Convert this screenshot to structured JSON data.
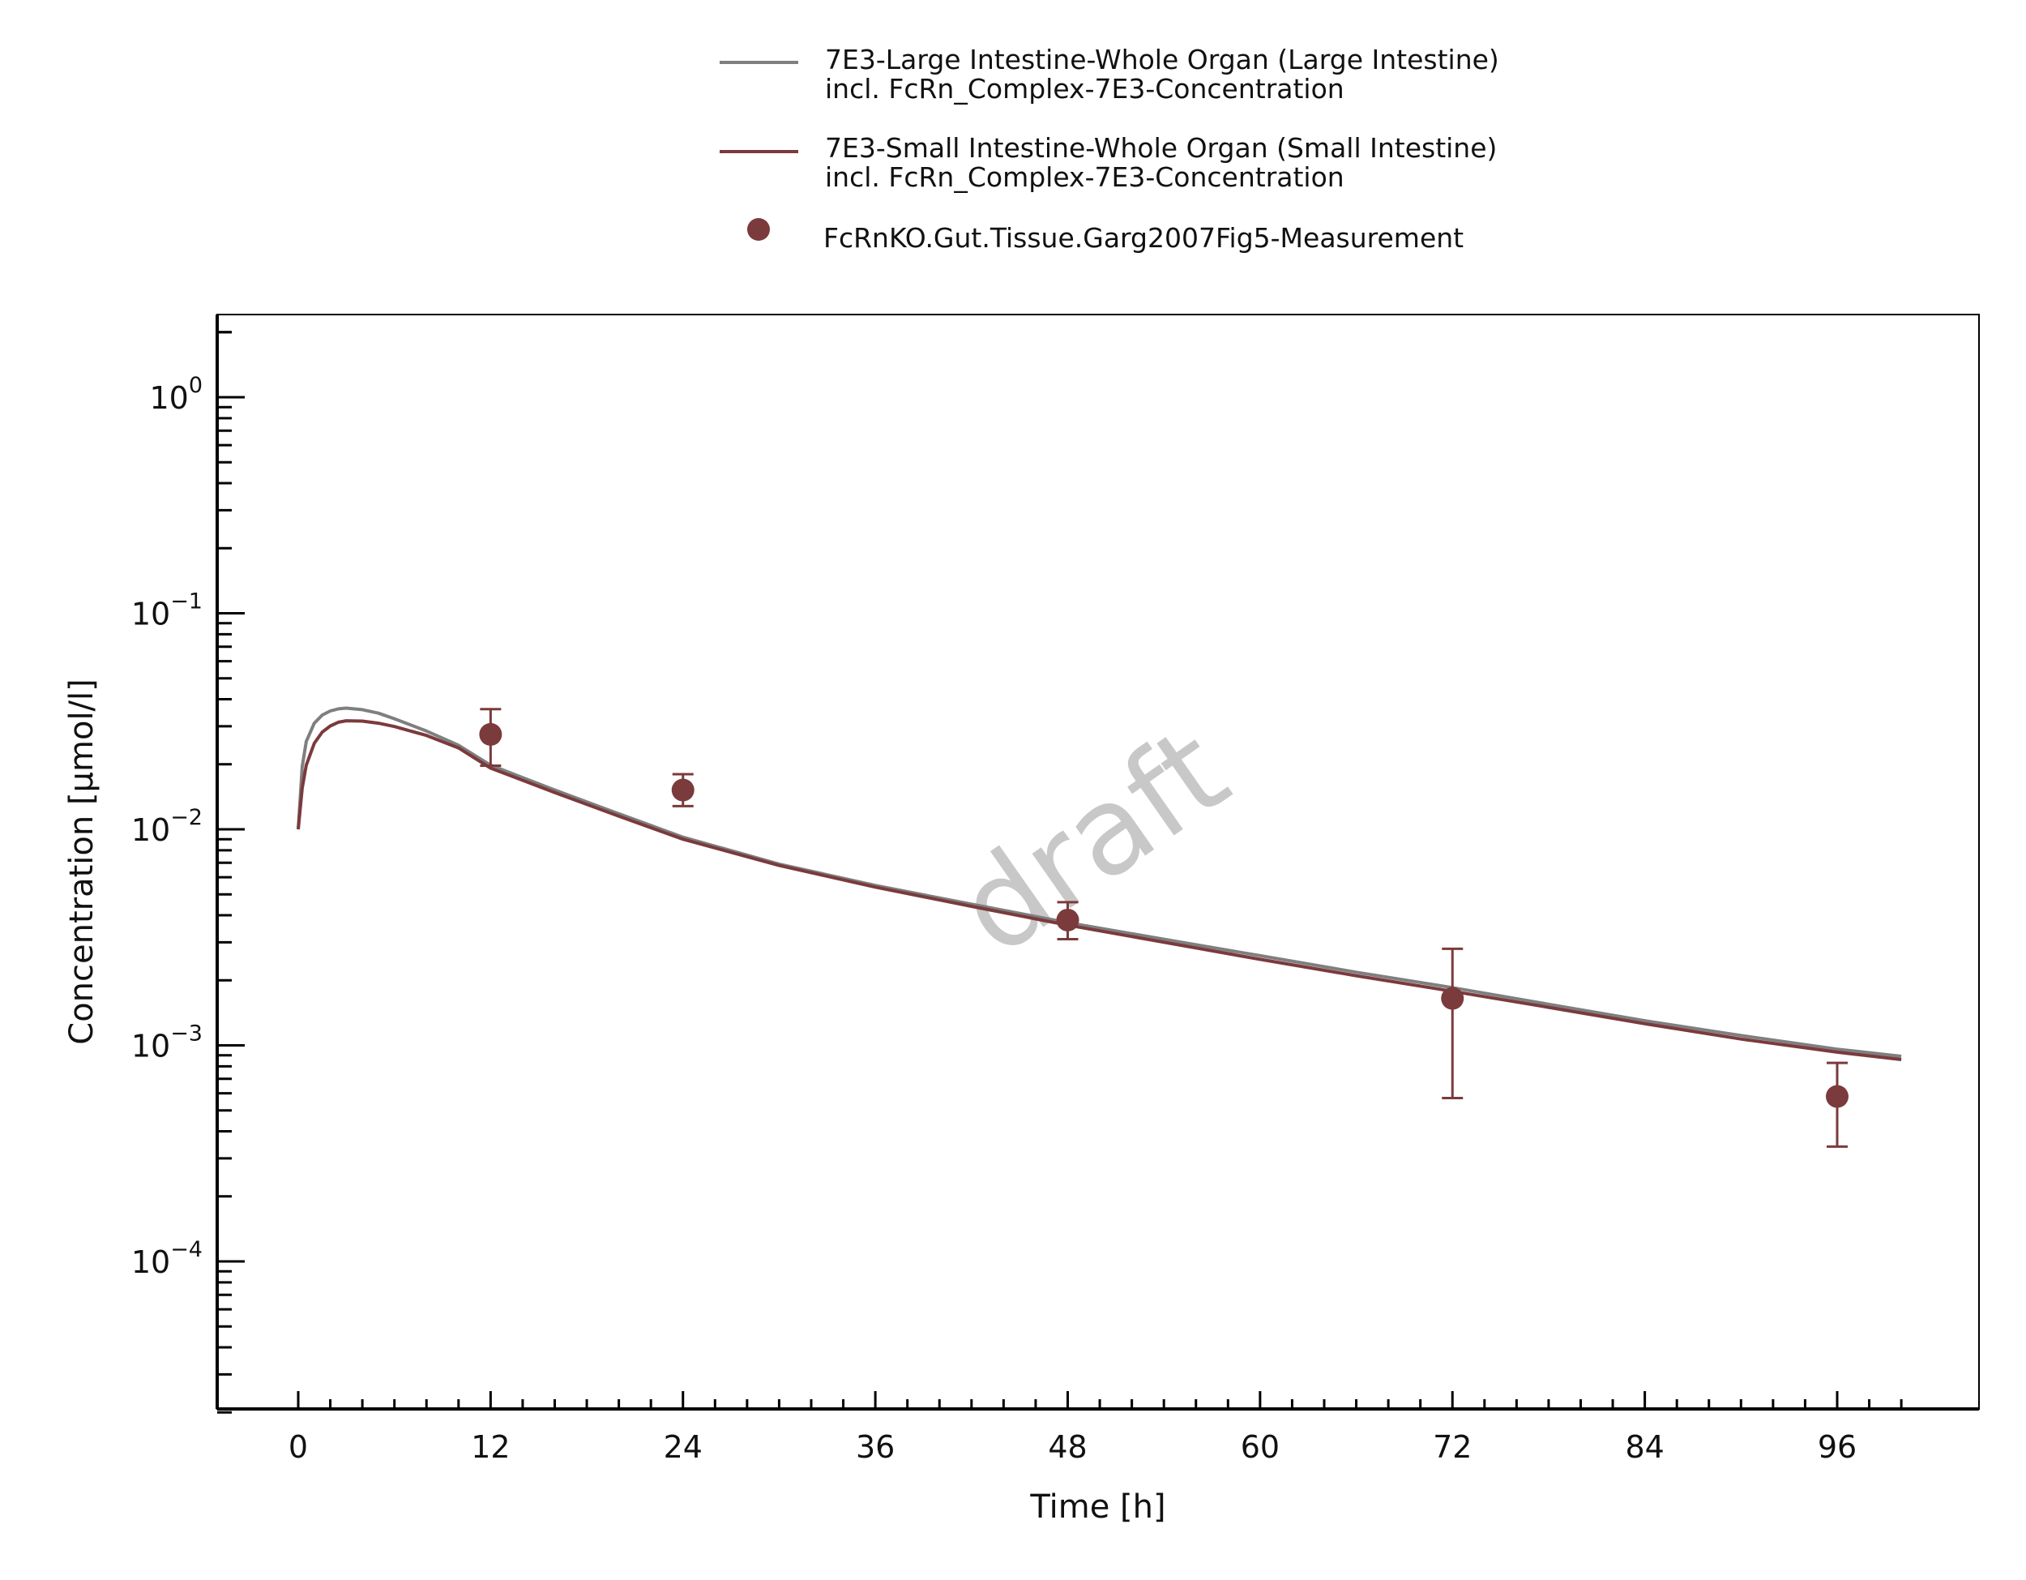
{
  "chart_data": {
    "type": "line",
    "title": "",
    "xlabel": "Time [h]",
    "ylabel": "Concentration [µmol/l]",
    "xlim": [
      -5,
      105
    ],
    "ylim": [
      2e-05,
      2.3
    ],
    "x_scale": "linear",
    "y_scale": "log",
    "x_ticks": [
      0,
      12,
      24,
      36,
      48,
      60,
      72,
      84,
      96
    ],
    "y_ticks": [
      {
        "value": 1,
        "base": "10",
        "exp": "0"
      },
      {
        "value": 0.1,
        "base": "10",
        "exp": "−1"
      },
      {
        "value": 0.01,
        "base": "10",
        "exp": "−2"
      },
      {
        "value": 0.001,
        "base": "10",
        "exp": "−3"
      },
      {
        "value": 0.0001,
        "base": "10",
        "exp": "−4"
      }
    ],
    "grid": false,
    "legend_position": "top-center, above plot",
    "watermark": "draft",
    "series": [
      {
        "name": "7E3-Large Intestine-Whole Organ (Large Intestine)",
        "name_line2": "incl. FcRn_Complex-7E3-Concentration",
        "kind": "line",
        "color": "#7f7f7f",
        "x": [
          0,
          0.25,
          0.5,
          1,
          1.5,
          2,
          2.5,
          3,
          4,
          5,
          6,
          8,
          10,
          12,
          16,
          20,
          24,
          30,
          36,
          42,
          48,
          54,
          60,
          66,
          72,
          78,
          84,
          90,
          96,
          100
        ],
        "y": [
          0.01,
          0.0195,
          0.0255,
          0.031,
          0.0338,
          0.0353,
          0.0361,
          0.0364,
          0.0358,
          0.0345,
          0.0325,
          0.0285,
          0.0245,
          0.0198,
          0.0152,
          0.0118,
          0.0092,
          0.0069,
          0.0055,
          0.0045,
          0.0037,
          0.0031,
          0.0026,
          0.00218,
          0.00185,
          0.00155,
          0.0013,
          0.00111,
          0.00096,
          0.00089
        ]
      },
      {
        "name": "7E3-Small Intestine-Whole Organ (Small Intestine)",
        "name_line2": "incl. FcRn_Complex-7E3-Concentration",
        "kind": "line",
        "color": "#7b3a3c",
        "x": [
          0,
          0.25,
          0.5,
          1,
          1.5,
          2,
          2.5,
          3,
          4,
          5,
          6,
          8,
          10,
          12,
          16,
          20,
          24,
          30,
          36,
          42,
          48,
          54,
          60,
          66,
          72,
          78,
          84,
          90,
          96,
          100
        ],
        "y": [
          0.01,
          0.0155,
          0.0198,
          0.025,
          0.0282,
          0.0301,
          0.0313,
          0.0318,
          0.0317,
          0.031,
          0.0299,
          0.0272,
          0.0238,
          0.0192,
          0.0148,
          0.0115,
          0.009,
          0.0068,
          0.0054,
          0.0044,
          0.0036,
          0.003,
          0.0025,
          0.0021,
          0.00178,
          0.0015,
          0.00126,
          0.00107,
          0.00093,
          0.00086
        ]
      },
      {
        "name": "FcRnKO.Gut.Tissue.Garg2007Fig5-Measurement",
        "kind": "scatter",
        "color": "#7b3a3c",
        "x": [
          12,
          24,
          48,
          72,
          96
        ],
        "y": [
          0.0275,
          0.0152,
          0.0038,
          0.00165,
          0.00058
        ],
        "y_err_low": [
          0.0197,
          0.0128,
          0.0031,
          0.00057,
          0.00034
        ],
        "y_err_high": [
          0.036,
          0.018,
          0.0046,
          0.0028,
          0.00083
        ]
      }
    ]
  }
}
